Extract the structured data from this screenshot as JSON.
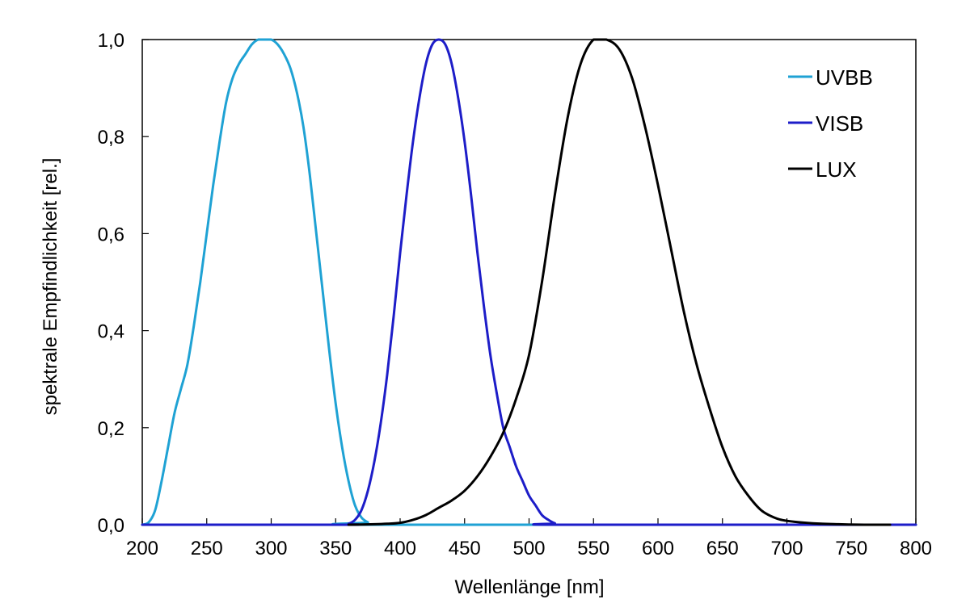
{
  "chart_data": {
    "type": "line",
    "title": "",
    "xlabel": "Wellenlänge [nm]",
    "ylabel": "spektrale Empfindlichkeit [rel.]",
    "xlim": [
      200,
      800
    ],
    "ylim": [
      0,
      1
    ],
    "x_ticks": [
      200,
      250,
      300,
      350,
      400,
      450,
      500,
      550,
      600,
      650,
      700,
      750,
      800
    ],
    "y_ticks": [
      0,
      0.2,
      0.4,
      0.6,
      0.8,
      1.0
    ],
    "x_tick_labels": [
      "200",
      "250",
      "300",
      "350",
      "400",
      "450",
      "500",
      "550",
      "600",
      "650",
      "700",
      "750",
      "800"
    ],
    "y_tick_labels": [
      "0,0",
      "0,2",
      "0,4",
      "0,6",
      "0,8",
      "1,0"
    ],
    "grid": false,
    "legend_position": "top-right",
    "series": [
      {
        "name": "UVBB",
        "color": "#1fa2d4",
        "points": [
          [
            200,
            0
          ],
          [
            205,
            0.005
          ],
          [
            210,
            0.03
          ],
          [
            215,
            0.09
          ],
          [
            220,
            0.16
          ],
          [
            225,
            0.23
          ],
          [
            230,
            0.28
          ],
          [
            235,
            0.33
          ],
          [
            240,
            0.41
          ],
          [
            245,
            0.5
          ],
          [
            250,
            0.6
          ],
          [
            255,
            0.7
          ],
          [
            260,
            0.79
          ],
          [
            265,
            0.87
          ],
          [
            270,
            0.92
          ],
          [
            275,
            0.95
          ],
          [
            280,
            0.97
          ],
          [
            285,
            0.99
          ],
          [
            290,
            1.0
          ],
          [
            295,
            1.0
          ],
          [
            300,
            1.0
          ],
          [
            305,
            0.99
          ],
          [
            310,
            0.97
          ],
          [
            315,
            0.94
          ],
          [
            320,
            0.89
          ],
          [
            325,
            0.82
          ],
          [
            330,
            0.72
          ],
          [
            335,
            0.6
          ],
          [
            340,
            0.48
          ],
          [
            345,
            0.36
          ],
          [
            350,
            0.25
          ],
          [
            355,
            0.16
          ],
          [
            360,
            0.09
          ],
          [
            365,
            0.04
          ],
          [
            370,
            0.015
          ],
          [
            375,
            0.005
          ],
          [
            380,
            0.0
          ],
          [
            800,
            0.0
          ]
        ]
      },
      {
        "name": "VISB",
        "color": "#1d1dc8",
        "points": [
          [
            200,
            0
          ],
          [
            355,
            0
          ],
          [
            360,
            0.002
          ],
          [
            365,
            0.01
          ],
          [
            370,
            0.03
          ],
          [
            375,
            0.07
          ],
          [
            380,
            0.13
          ],
          [
            385,
            0.21
          ],
          [
            390,
            0.31
          ],
          [
            395,
            0.43
          ],
          [
            400,
            0.56
          ],
          [
            405,
            0.68
          ],
          [
            410,
            0.79
          ],
          [
            415,
            0.88
          ],
          [
            420,
            0.95
          ],
          [
            425,
            0.99
          ],
          [
            430,
            1.0
          ],
          [
            435,
            0.99
          ],
          [
            440,
            0.95
          ],
          [
            445,
            0.88
          ],
          [
            450,
            0.79
          ],
          [
            455,
            0.68
          ],
          [
            460,
            0.56
          ],
          [
            465,
            0.45
          ],
          [
            470,
            0.35
          ],
          [
            475,
            0.27
          ],
          [
            480,
            0.2
          ],
          [
            485,
            0.16
          ],
          [
            490,
            0.12
          ],
          [
            495,
            0.09
          ],
          [
            500,
            0.06
          ],
          [
            505,
            0.04
          ],
          [
            510,
            0.02
          ],
          [
            515,
            0.01
          ],
          [
            520,
            0.003
          ],
          [
            525,
            0.0
          ],
          [
            800,
            0.0
          ]
        ]
      },
      {
        "name": "LUX",
        "color": "#000000",
        "points": [
          [
            360,
            0
          ],
          [
            380,
            0.001
          ],
          [
            390,
            0.002
          ],
          [
            400,
            0.004
          ],
          [
            410,
            0.01
          ],
          [
            420,
            0.02
          ],
          [
            430,
            0.035
          ],
          [
            440,
            0.05
          ],
          [
            450,
            0.07
          ],
          [
            460,
            0.1
          ],
          [
            470,
            0.14
          ],
          [
            480,
            0.19
          ],
          [
            490,
            0.26
          ],
          [
            500,
            0.35
          ],
          [
            510,
            0.5
          ],
          [
            520,
            0.68
          ],
          [
            530,
            0.84
          ],
          [
            540,
            0.95
          ],
          [
            550,
            1.0
          ],
          [
            560,
            1.0
          ],
          [
            570,
            0.98
          ],
          [
            580,
            0.92
          ],
          [
            590,
            0.82
          ],
          [
            600,
            0.7
          ],
          [
            610,
            0.57
          ],
          [
            620,
            0.44
          ],
          [
            630,
            0.33
          ],
          [
            640,
            0.24
          ],
          [
            650,
            0.16
          ],
          [
            660,
            0.1
          ],
          [
            670,
            0.06
          ],
          [
            680,
            0.03
          ],
          [
            690,
            0.015
          ],
          [
            700,
            0.008
          ],
          [
            720,
            0.003
          ],
          [
            740,
            0.001
          ],
          [
            760,
            0.0
          ],
          [
            780,
            0.0
          ]
        ]
      }
    ]
  }
}
